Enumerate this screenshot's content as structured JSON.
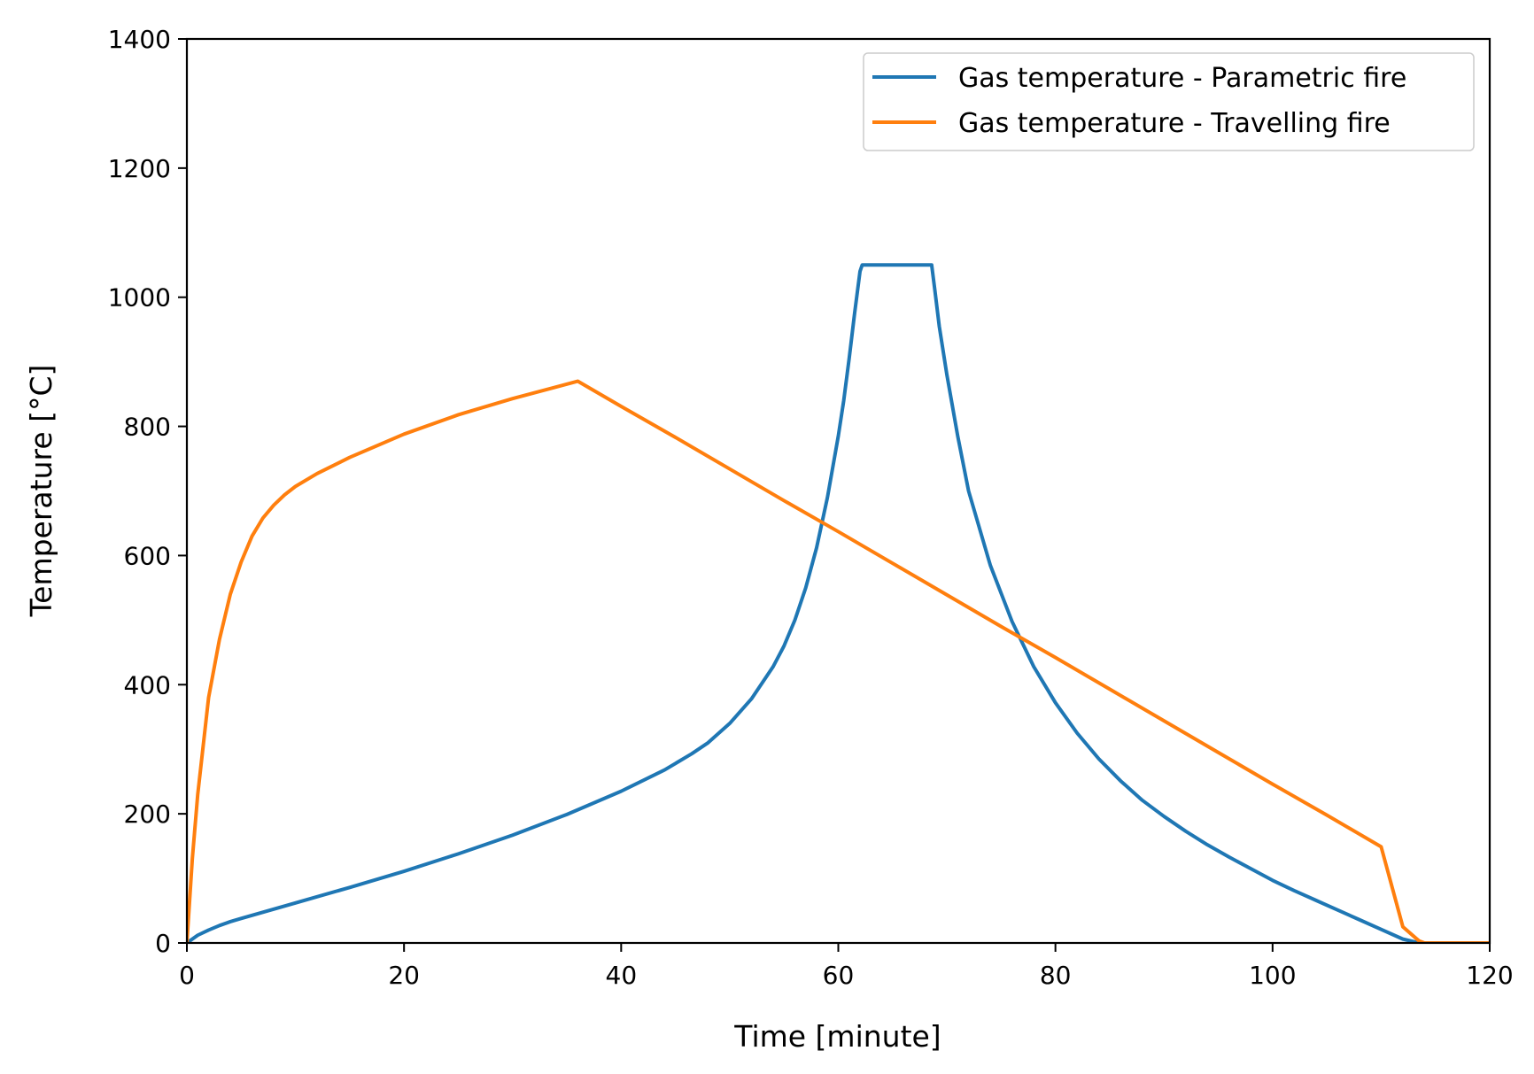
{
  "chart_data": {
    "type": "line",
    "xlabel": "Time [minute]",
    "ylabel": "Temperature [°C]",
    "xlim": [
      0,
      120
    ],
    "ylim": [
      0,
      1400
    ],
    "xticks": [
      0,
      20,
      40,
      60,
      80,
      100,
      120
    ],
    "yticks": [
      0,
      200,
      400,
      600,
      800,
      1000,
      1200,
      1400
    ],
    "grid": false,
    "legend_position": "top-right",
    "series": [
      {
        "name": "Gas temperature - Parametric fire",
        "color": "#1f77b4",
        "x": [
          0,
          1,
          2,
          3,
          4,
          5,
          7.5,
          10,
          15,
          20,
          25,
          30,
          35,
          40,
          44,
          46.5,
          48,
          50,
          52,
          54,
          55,
          56,
          57,
          58,
          59,
          60,
          60.5,
          61,
          61.5,
          62,
          62.2,
          68.6,
          68.9,
          69.3,
          70,
          71,
          72,
          74,
          76,
          78,
          80,
          82,
          84,
          86,
          88,
          90,
          92,
          94,
          96,
          98,
          100,
          102,
          104,
          106,
          108,
          110,
          112,
          113.5,
          114,
          120
        ],
        "y": [
          0,
          12,
          20,
          27,
          33,
          38,
          50,
          62,
          86,
          111,
          138,
          167,
          199,
          235,
          268,
          293,
          310,
          340,
          378,
          428,
          460,
          500,
          550,
          612,
          690,
          785,
          840,
          905,
          975,
          1040,
          1050,
          1050,
          1010,
          955,
          880,
          785,
          700,
          585,
          498,
          428,
          372,
          325,
          285,
          251,
          221,
          196,
          173,
          152,
          133,
          115,
          97,
          81,
          66,
          51,
          36,
          21,
          6,
          0,
          0,
          0
        ]
      },
      {
        "name": "Gas temperature - Travelling fire",
        "color": "#ff7f0e",
        "x": [
          0,
          0.5,
          1,
          2,
          3,
          4,
          5,
          6,
          7,
          8,
          9,
          10,
          12,
          15,
          20,
          25,
          30,
          36,
          40,
          45,
          50,
          55,
          60,
          65,
          70,
          75,
          80,
          85,
          90,
          95,
          100,
          105,
          110,
          112,
          113.5,
          114,
          120
        ],
        "y": [
          0,
          130,
          230,
          380,
          470,
          540,
          590,
          630,
          658,
          678,
          694,
          707,
          727,
          752,
          788,
          818,
          843,
          870,
          831,
          783,
          734,
          685,
          637,
          588,
          539,
          490,
          442,
          393,
          344,
          295,
          246,
          198,
          149,
          25,
          3,
          0,
          0
        ]
      }
    ]
  }
}
